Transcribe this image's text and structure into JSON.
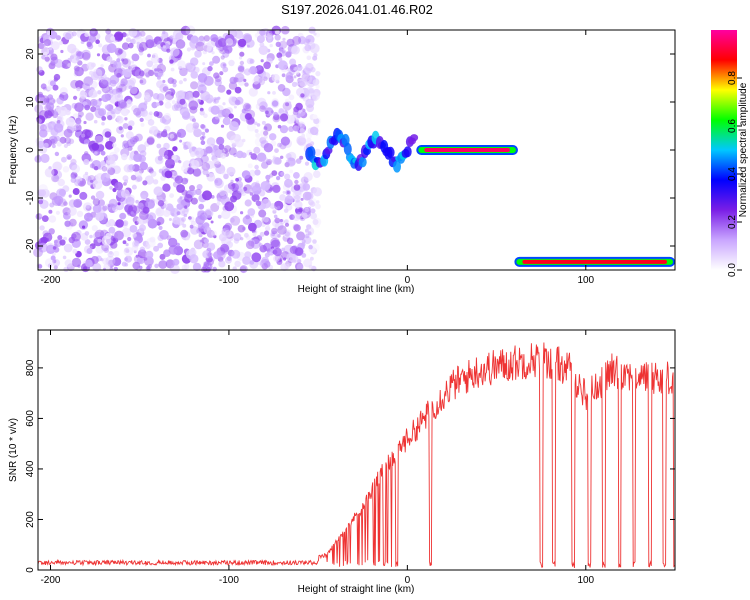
{
  "title": "S197.2026.041.01.46.R02",
  "chart_data": [
    {
      "type": "heatmap",
      "xlabel": "Height of straight line (km)",
      "ylabel": "Frequency (Hz)",
      "xlim": [
        -207,
        150
      ],
      "ylim": [
        -25,
        25
      ],
      "xticks": [
        -200,
        -100,
        0,
        100
      ],
      "yticks": [
        -20,
        -10,
        0,
        10,
        20
      ],
      "colorbar": {
        "label": "Normalized spectral amplitude",
        "range": [
          0,
          1
        ],
        "ticks": [
          0.0,
          0.2,
          0.4,
          0.6,
          0.8
        ],
        "colormap": [
          "#ffffff",
          "#c9a6ff",
          "#7a1ee6",
          "#0000ff",
          "#00c8ff",
          "#00ff00",
          "#ffff00",
          "#ff0000",
          "#ff00a0"
        ]
      },
      "features": [
        {
          "label": "noise",
          "x": [
            -207,
            -50
          ],
          "y": [
            -25,
            25
          ],
          "amplitude": 0.15
        },
        {
          "label": "line at 0 Hz",
          "x": [
            5,
            62
          ],
          "y": 0,
          "amplitude": 0.95
        },
        {
          "label": "line at -23 Hz",
          "x": [
            60,
            150
          ],
          "y": -23.3,
          "amplitude": 0.9
        }
      ]
    },
    {
      "type": "line",
      "xlabel": "Height of straight line (km)",
      "ylabel": "SNR (10 * v/v)",
      "xlim": [
        -207,
        150
      ],
      "ylim": [
        0,
        950
      ],
      "xticks": [
        -200,
        -100,
        0,
        100
      ],
      "yticks": [
        0,
        200,
        400,
        600,
        800
      ],
      "color": "#ee3333",
      "envelope": [
        {
          "x": -207,
          "y": 25
        },
        {
          "x": -150,
          "y": 25
        },
        {
          "x": -100,
          "y": 25
        },
        {
          "x": -60,
          "y": 30
        },
        {
          "x": -45,
          "y": 60
        },
        {
          "x": -35,
          "y": 160
        },
        {
          "x": -25,
          "y": 250
        },
        {
          "x": -15,
          "y": 380
        },
        {
          "x": -5,
          "y": 480
        },
        {
          "x": 5,
          "y": 560
        },
        {
          "x": 15,
          "y": 650
        },
        {
          "x": 25,
          "y": 730
        },
        {
          "x": 40,
          "y": 790
        },
        {
          "x": 60,
          "y": 820
        },
        {
          "x": 75,
          "y": 840
        },
        {
          "x": 90,
          "y": 800
        },
        {
          "x": 100,
          "y": 690
        },
        {
          "x": 105,
          "y": 720
        },
        {
          "x": 115,
          "y": 790
        },
        {
          "x": 130,
          "y": 770
        },
        {
          "x": 150,
          "y": 760
        }
      ],
      "dropouts_x": [
        -13,
        -6,
        13,
        75,
        82,
        93,
        102,
        110,
        119,
        127,
        136,
        144,
        150
      ]
    }
  ]
}
